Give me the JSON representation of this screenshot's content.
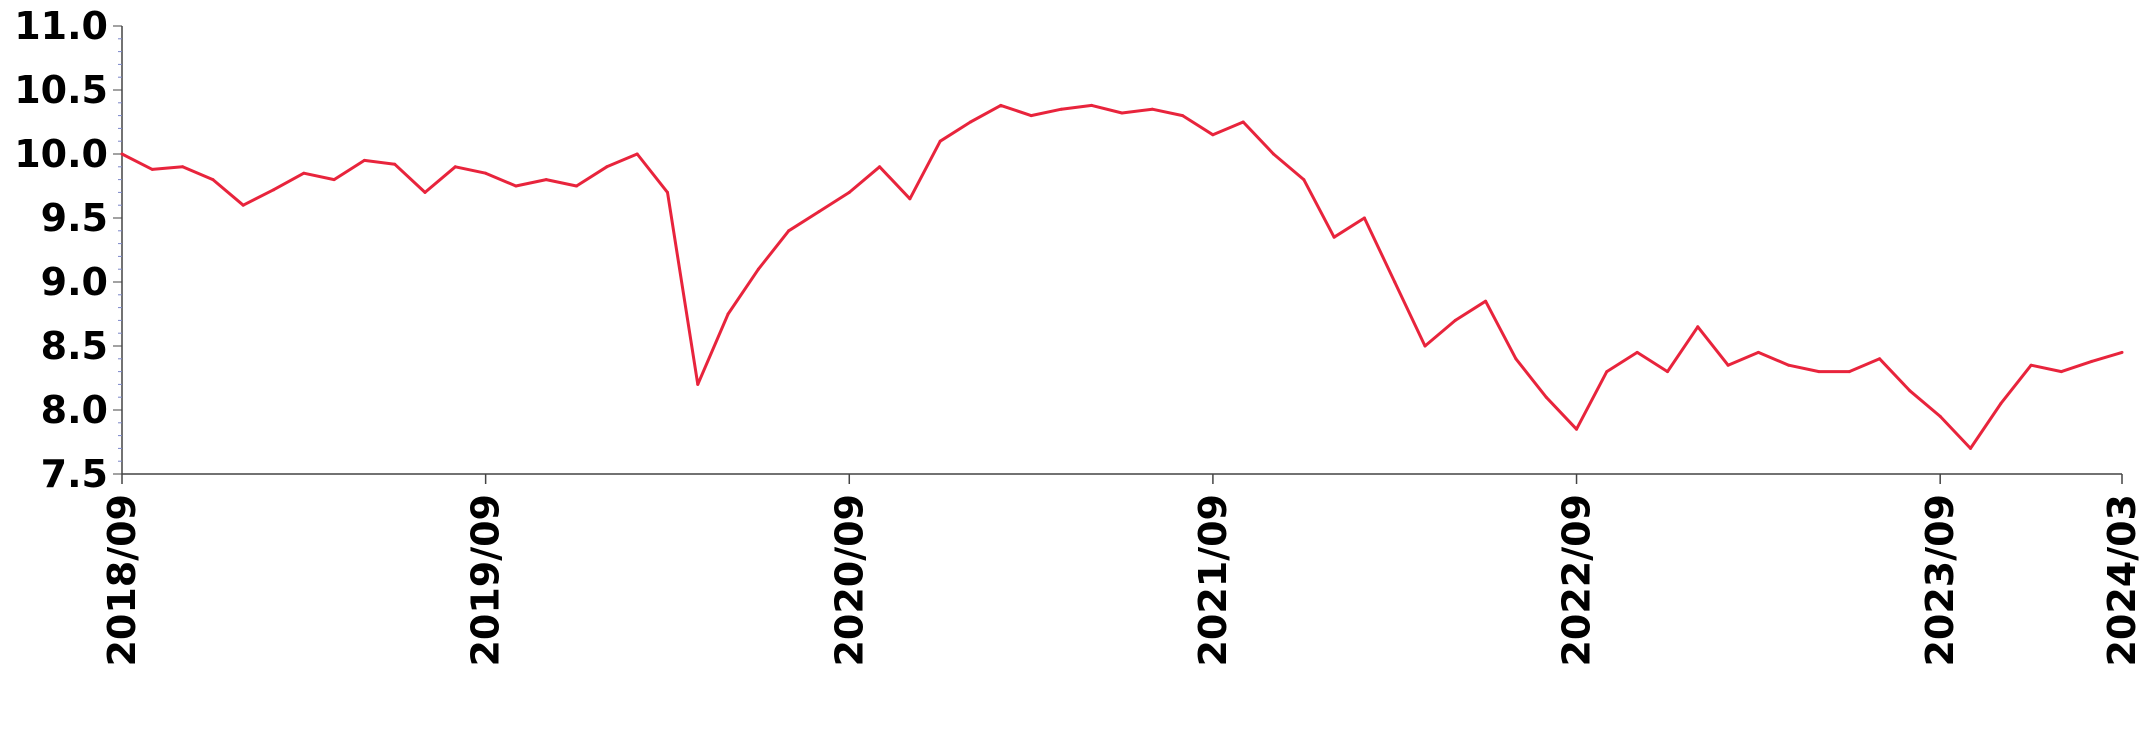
{
  "chart_data": {
    "type": "line",
    "title": "",
    "xlabel": "",
    "ylabel": "",
    "ylim": [
      7.5,
      11.0
    ],
    "y_ticks": [
      "7.5",
      "8.0",
      "8.5",
      "9.0",
      "9.5",
      "10.0",
      "10.5",
      "11.0"
    ],
    "x_ticks": [
      "2018/09",
      "2019/09",
      "2020/09",
      "2021/09",
      "2022/09",
      "2023/09",
      "2024/03"
    ],
    "x_range": [
      "2018-09",
      "2024-03"
    ],
    "grid": false,
    "legend": "none",
    "line_color": "#e8243c",
    "series": [
      {
        "x": [
          "2018-09",
          "2018-10",
          "2018-11",
          "2018-12",
          "2019-01",
          "2019-02",
          "2019-03",
          "2019-04",
          "2019-05",
          "2019-06",
          "2019-07",
          "2019-08",
          "2019-09",
          "2019-10",
          "2019-11",
          "2019-12",
          "2020-01",
          "2020-02",
          "2020-03",
          "2020-04",
          "2020-05",
          "2020-06",
          "2020-07",
          "2020-08",
          "2020-09",
          "2020-10",
          "2020-11",
          "2020-12",
          "2021-01",
          "2021-02",
          "2021-03",
          "2021-04",
          "2021-05",
          "2021-06",
          "2021-07",
          "2021-08",
          "2021-09",
          "2021-10",
          "2021-11",
          "2021-12",
          "2022-01",
          "2022-02",
          "2022-03",
          "2022-04",
          "2022-05",
          "2022-06",
          "2022-07",
          "2022-08",
          "2022-09",
          "2022-10",
          "2022-11",
          "2022-12",
          "2023-01",
          "2023-02",
          "2023-03",
          "2023-04",
          "2023-05",
          "2023-06",
          "2023-07",
          "2023-08",
          "2023-09",
          "2023-10",
          "2023-11",
          "2023-12",
          "2024-01",
          "2024-02",
          "2024-03"
        ],
        "values": [
          10.0,
          9.88,
          9.9,
          9.8,
          9.6,
          9.72,
          9.85,
          9.8,
          9.95,
          9.92,
          9.7,
          9.9,
          9.85,
          9.75,
          9.8,
          9.75,
          9.9,
          10.0,
          9.7,
          8.2,
          8.75,
          9.1,
          9.4,
          9.55,
          9.7,
          9.9,
          9.65,
          10.1,
          10.25,
          10.38,
          10.3,
          10.35,
          10.38,
          10.32,
          10.35,
          10.3,
          10.15,
          10.25,
          10.0,
          9.8,
          9.35,
          9.5,
          9.0,
          8.5,
          8.7,
          8.85,
          8.4,
          8.1,
          7.85,
          8.3,
          8.45,
          8.3,
          8.65,
          8.35,
          8.45,
          8.35,
          8.3,
          8.3,
          8.4,
          8.15,
          7.95,
          7.7,
          8.05,
          8.35,
          8.3,
          8.38,
          8.45
        ]
      }
    ]
  }
}
